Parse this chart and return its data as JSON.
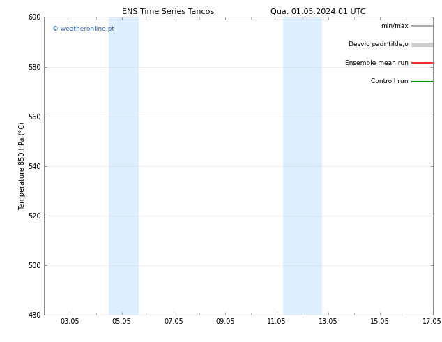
{
  "title": "ENS Time Series Tancos",
  "title2": "Qua. 01.05.2024 01 UTC",
  "ylabel": "Temperature 850 hPa (°C)",
  "ylim": [
    480,
    600
  ],
  "yticks": [
    480,
    500,
    520,
    540,
    560,
    580,
    600
  ],
  "xlim": [
    2.0,
    17.05
  ],
  "xtick_labels": [
    "03.05",
    "05.05",
    "07.05",
    "09.05",
    "11.05",
    "13.05",
    "15.05",
    "17.05"
  ],
  "xtick_positions": [
    3,
    5,
    7,
    9,
    11,
    13,
    15,
    17
  ],
  "shaded_bands": [
    {
      "start": 4.5,
      "end": 5.0
    },
    {
      "start": 5.0,
      "end": 5.7
    },
    {
      "start": 11.25,
      "end": 11.75
    },
    {
      "start": 11.75,
      "end": 12.75
    }
  ],
  "shaded_bands2": [
    {
      "start": 4.5,
      "end": 5.65
    },
    {
      "start": 11.25,
      "end": 12.75
    }
  ],
  "shade_color": "#ddeeff",
  "shade_color2": "#e8f4ff",
  "watermark": "© weatheronline.pt",
  "watermark_color": "#3366bb",
  "legend_items": [
    {
      "label": "min/max",
      "color": "#999999",
      "lw": 1.2,
      "thick": false
    },
    {
      "label": "Desvio padr tilde;o",
      "color": "#cccccc",
      "lw": 5,
      "thick": true
    },
    {
      "label": "Ensemble mean run",
      "color": "#ff0000",
      "lw": 1.2,
      "thick": false
    },
    {
      "label": "Controll run",
      "color": "#008800",
      "lw": 1.5,
      "thick": false
    }
  ],
  "bg_color": "#ffffff",
  "plot_bg": "#ffffff",
  "grid_color": "#cccccc",
  "title_fontsize": 8,
  "axis_fontsize": 7,
  "tick_fontsize": 7,
  "legend_fontsize": 6.5
}
